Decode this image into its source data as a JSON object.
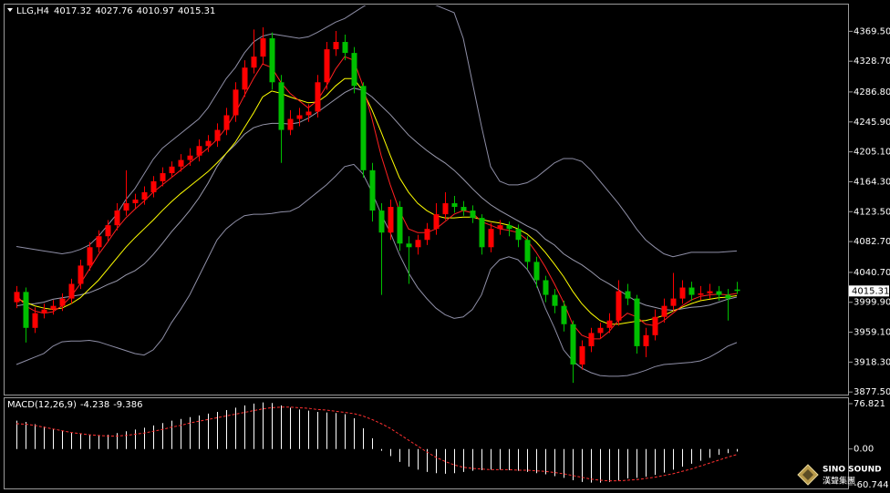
{
  "chart_data": [
    {
      "type": "candlestick",
      "symbol": "LLG,H4",
      "up_color": "#ff0000",
      "down_color": "#00c000",
      "ylim": [
        3874,
        4406
      ],
      "yticks": [
        {
          "value": 4369.5,
          "label": "4369.50"
        },
        {
          "value": 4328.7,
          "label": "4328.70"
        },
        {
          "value": 4286.8,
          "label": "4286.80"
        },
        {
          "value": 4245.9,
          "label": "4245.90"
        },
        {
          "value": 4205.1,
          "label": "4205.10"
        },
        {
          "value": 4164.3,
          "label": "4164.30"
        },
        {
          "value": 4123.5,
          "label": "4123.50"
        },
        {
          "value": 4082.7,
          "label": "4082.70"
        },
        {
          "value": 4040.7,
          "label": "4040.70"
        },
        {
          "value": 3999.9,
          "label": "3999.90"
        },
        {
          "value": 3959.1,
          "label": "3959.10"
        },
        {
          "value": 3918.3,
          "label": "3918.30"
        },
        {
          "value": 3877.5,
          "label": "3877.50"
        }
      ],
      "open": [
        4000,
        4014,
        3965,
        3985,
        3990,
        3995,
        4005,
        4025,
        4050,
        4075,
        4090,
        4105,
        4125,
        4135,
        4140,
        4150,
        4165,
        4176,
        4185,
        4194,
        4200,
        4213,
        4220,
        4235,
        4255,
        4290,
        4320,
        4335,
        4360,
        4300,
        4235,
        4250,
        4255,
        4260,
        4300,
        4345,
        4355,
        4340,
        4295,
        4180,
        4125,
        4095,
        4130,
        4080,
        4075,
        4085,
        4100,
        4120,
        4135,
        4130,
        4125,
        4115,
        4075,
        4100,
        4105,
        4100,
        4085,
        4055,
        4030,
        4010,
        3995,
        3970,
        3915,
        3940,
        3958,
        3965,
        3975,
        4015,
        4005,
        3940,
        3955,
        3980,
        3995,
        4005,
        4020,
        4010,
        4012,
        4015,
        4010,
        4017.32
      ],
      "high": [
        4022,
        4020,
        3993,
        3998,
        4003,
        4012,
        4032,
        4058,
        4082,
        4098,
        4112,
        4135,
        4180,
        4148,
        4158,
        4172,
        4184,
        4192,
        4202,
        4210,
        4222,
        4228,
        4244,
        4265,
        4300,
        4330,
        4372,
        4375,
        4368,
        4310,
        4262,
        4265,
        4270,
        4310,
        4355,
        4370,
        4365,
        4348,
        4300,
        4190,
        4135,
        4140,
        4138,
        4090,
        4092,
        4108,
        4135,
        4150,
        4145,
        4138,
        4132,
        4120,
        4108,
        4112,
        4110,
        4106,
        4090,
        4062,
        4036,
        4018,
        4002,
        3975,
        3948,
        3965,
        3972,
        3985,
        4030,
        4025,
        4010,
        3965,
        3990,
        4005,
        4040,
        4030,
        4028,
        4022,
        4025,
        4022,
        4018,
        4027.76
      ],
      "low": [
        3992,
        3945,
        3958,
        3978,
        3983,
        3988,
        3998,
        4018,
        4043,
        4068,
        4083,
        4098,
        4118,
        4128,
        4133,
        4143,
        4158,
        4170,
        4178,
        4186,
        4192,
        4205,
        4212,
        4228,
        4246,
        4280,
        4312,
        4325,
        4290,
        4190,
        4228,
        4240,
        4246,
        4252,
        4290,
        4336,
        4330,
        4285,
        4170,
        4110,
        4010,
        4085,
        4070,
        4025,
        4065,
        4078,
        4092,
        4112,
        4122,
        4118,
        4108,
        4065,
        4068,
        4092,
        4090,
        4075,
        4045,
        4020,
        4000,
        3985,
        3960,
        3890,
        3908,
        3932,
        3950,
        3958,
        3968,
        3996,
        3930,
        3925,
        3948,
        3972,
        3988,
        3998,
        4002,
        4003,
        4005,
        4002,
        3975,
        4010.97
      ],
      "close": [
        4014,
        3965,
        3985,
        3990,
        3995,
        4005,
        4025,
        4050,
        4075,
        4090,
        4105,
        4125,
        4135,
        4140,
        4150,
        4165,
        4176,
        4185,
        4194,
        4200,
        4213,
        4220,
        4235,
        4255,
        4290,
        4320,
        4335,
        4360,
        4300,
        4235,
        4250,
        4255,
        4260,
        4300,
        4345,
        4355,
        4340,
        4295,
        4180,
        4125,
        4095,
        4130,
        4080,
        4075,
        4085,
        4100,
        4120,
        4135,
        4130,
        4125,
        4115,
        4075,
        4100,
        4105,
        4100,
        4085,
        4055,
        4030,
        4010,
        3995,
        3970,
        3915,
        3940,
        3958,
        3965,
        3975,
        4015,
        4005,
        3940,
        3955,
        3980,
        3995,
        4005,
        4020,
        4010,
        4012,
        4015,
        4010,
        4005,
        4015.31
      ],
      "lines": [
        {
          "color": "#8e8ea6",
          "values": [
            4076,
            4074,
            4072,
            4070,
            4068,
            4066,
            4068,
            4072,
            4078,
            4090,
            4105,
            4120,
            4140,
            4155,
            4175,
            4195,
            4210,
            4220,
            4230,
            4240,
            4250,
            4265,
            4285,
            4305,
            4320,
            4340,
            4355,
            4363,
            4366,
            4364,
            4362,
            4360,
            4362,
            4368,
            4375,
            4382,
            4387,
            4395,
            4403,
            4410,
            4415,
            4418,
            4418,
            4416,
            4414,
            4410,
            4405,
            4400,
            4395,
            4360,
            4300,
            4240,
            4185,
            4165,
            4160,
            4160,
            4163,
            4170,
            4180,
            4190,
            4196,
            4196,
            4192,
            4180,
            4165,
            4150,
            4135,
            4118,
            4100,
            4085,
            4075,
            4066,
            4062,
            4065,
            4068,
            4068,
            4068,
            4068,
            4069,
            4070
          ]
        },
        {
          "color": "#9a9aae",
          "values": [
            3995,
            3997,
            3998,
            4000,
            4004,
            4006,
            4008,
            4010,
            4013,
            4018,
            4024,
            4029,
            4037,
            4043,
            4052,
            4065,
            4080,
            4096,
            4110,
            4125,
            4142,
            4162,
            4185,
            4203,
            4215,
            4229,
            4238,
            4242,
            4244,
            4244,
            4243,
            4245,
            4251,
            4259,
            4268,
            4277,
            4286,
            4292,
            4289,
            4280,
            4268,
            4256,
            4242,
            4228,
            4217,
            4207,
            4198,
            4190,
            4180,
            4168,
            4155,
            4143,
            4133,
            4125,
            4118,
            4111,
            4104,
            4098,
            4086,
            4078,
            4066,
            4058,
            4051,
            4042,
            4032,
            4025,
            4017,
            4009,
            4001,
            3996,
            3993,
            3990,
            3989,
            3991,
            3993,
            3994,
            3996,
            4000,
            4004,
            4007
          ]
        },
        {
          "color": "#8e8ea6",
          "values": [
            3915,
            3920,
            3925,
            3930,
            3940,
            3946,
            3947,
            3947,
            3948,
            3946,
            3942,
            3938,
            3934,
            3930,
            3928,
            3935,
            3950,
            3972,
            3990,
            4010,
            4035,
            4060,
            4085,
            4100,
            4110,
            4118,
            4120,
            4120,
            4121,
            4123,
            4124,
            4130,
            4140,
            4150,
            4160,
            4172,
            4185,
            4188,
            4175,
            4150,
            4120,
            4095,
            4065,
            4040,
            4020,
            4005,
            3992,
            3983,
            3978,
            3980,
            3990,
            4010,
            4045,
            4058,
            4062,
            4058,
            4045,
            4025,
            3992,
            3965,
            3935,
            3920,
            3910,
            3904,
            3900,
            3899,
            3899,
            3900,
            3903,
            3907,
            3912,
            3915,
            3916,
            3917,
            3918,
            3920,
            3925,
            3932,
            3940,
            3945
          ]
        },
        {
          "color": "#ffff00",
          "values": [
            4005,
            4000,
            3995,
            3992,
            3990,
            3992,
            3998,
            4006,
            4018,
            4030,
            4045,
            4060,
            4075,
            4088,
            4100,
            4112,
            4125,
            4137,
            4148,
            4158,
            4168,
            4178,
            4190,
            4203,
            4218,
            4238,
            4258,
            4280,
            4288,
            4285,
            4280,
            4276,
            4272,
            4273,
            4282,
            4295,
            4305,
            4305,
            4288,
            4262,
            4232,
            4200,
            4170,
            4150,
            4135,
            4125,
            4118,
            4115,
            4115,
            4116,
            4116,
            4113,
            4110,
            4108,
            4105,
            4100,
            4093,
            4082,
            4068,
            4052,
            4035,
            4015,
            3998,
            3985,
            3975,
            3970,
            3970,
            3972,
            3974,
            3975,
            3978,
            3982,
            3988,
            3993,
            3998,
            4002,
            4004,
            4006,
            4007,
            4009
          ]
        },
        {
          "color": "#ff2020",
          "values": [
            4010,
            3995,
            3988,
            3985,
            3987,
            3995,
            4008,
            4025,
            4045,
            4065,
            4082,
            4100,
            4115,
            4127,
            4138,
            4150,
            4160,
            4170,
            4180,
            4190,
            4200,
            4210,
            4222,
            4238,
            4258,
            4282,
            4305,
            4325,
            4320,
            4300,
            4285,
            4275,
            4265,
            4275,
            4295,
            4318,
            4335,
            4330,
            4295,
            4250,
            4200,
            4160,
            4125,
            4100,
            4095,
            4095,
            4100,
            4110,
            4120,
            4125,
            4122,
            4110,
            4105,
            4100,
            4098,
            4095,
            4085,
            4068,
            4048,
            4025,
            4000,
            3970,
            3955,
            3950,
            3950,
            3960,
            3975,
            3985,
            3980,
            3970,
            3968,
            3975,
            3985,
            3995,
            4003,
            4008,
            4010,
            4011,
            4010,
            4012
          ]
        }
      ]
    },
    {
      "type": "macd",
      "title": "MACD(12,26,9)",
      "ylim": [
        -60.744,
        76.821
      ],
      "yticks": [
        76.821,
        {
          "value": 0,
          "label": "0.00"
        },
        -60.744
      ],
      "histogram": {
        "color": "#ffffff",
        "values": [
          48,
          46,
          42,
          38,
          34,
          31,
          28,
          26,
          24,
          23,
          24,
          27,
          30,
          33,
          36,
          40,
          44,
          48,
          51,
          54,
          57,
          60,
          63,
          66,
          70,
          74,
          77,
          79,
          78,
          74,
          70,
          67,
          65,
          63,
          62,
          61,
          59,
          52,
          35,
          18,
          -3,
          -12,
          -22,
          -30,
          -35,
          -39,
          -41,
          -42,
          -41,
          -39,
          -37,
          -36,
          -35,
          -35,
          -36,
          -37,
          -39,
          -41,
          -43,
          -46,
          -49,
          -53,
          -56,
          -57,
          -57,
          -56,
          -53,
          -50,
          -49,
          -47,
          -44,
          -40,
          -35,
          -30,
          -25,
          -20,
          -15,
          -10,
          -7,
          -4.238
        ]
      },
      "signal": {
        "color": "#ff3030",
        "values": [
          43,
          42,
          40,
          37,
          34,
          31,
          28,
          26,
          24,
          23,
          22,
          22,
          23,
          25,
          27,
          30,
          33,
          37,
          40,
          44,
          47,
          50,
          53,
          56,
          59,
          62,
          65,
          68,
          70,
          71,
          71,
          70,
          69,
          67,
          66,
          64,
          62,
          60,
          56,
          50,
          43,
          35,
          25,
          15,
          5,
          -5,
          -14,
          -21,
          -27,
          -31,
          -33,
          -34,
          -35,
          -35,
          -35,
          -36,
          -36,
          -37,
          -38,
          -40,
          -42,
          -45,
          -48,
          -51,
          -53,
          -54,
          -54,
          -53,
          -52,
          -50,
          -48,
          -45,
          -42,
          -38,
          -34,
          -29,
          -24,
          -19,
          -14,
          -9.386
        ]
      }
    }
  ],
  "watermark": {
    "name": "SINO SOUND",
    "subtitle": "漢聲集團"
  }
}
